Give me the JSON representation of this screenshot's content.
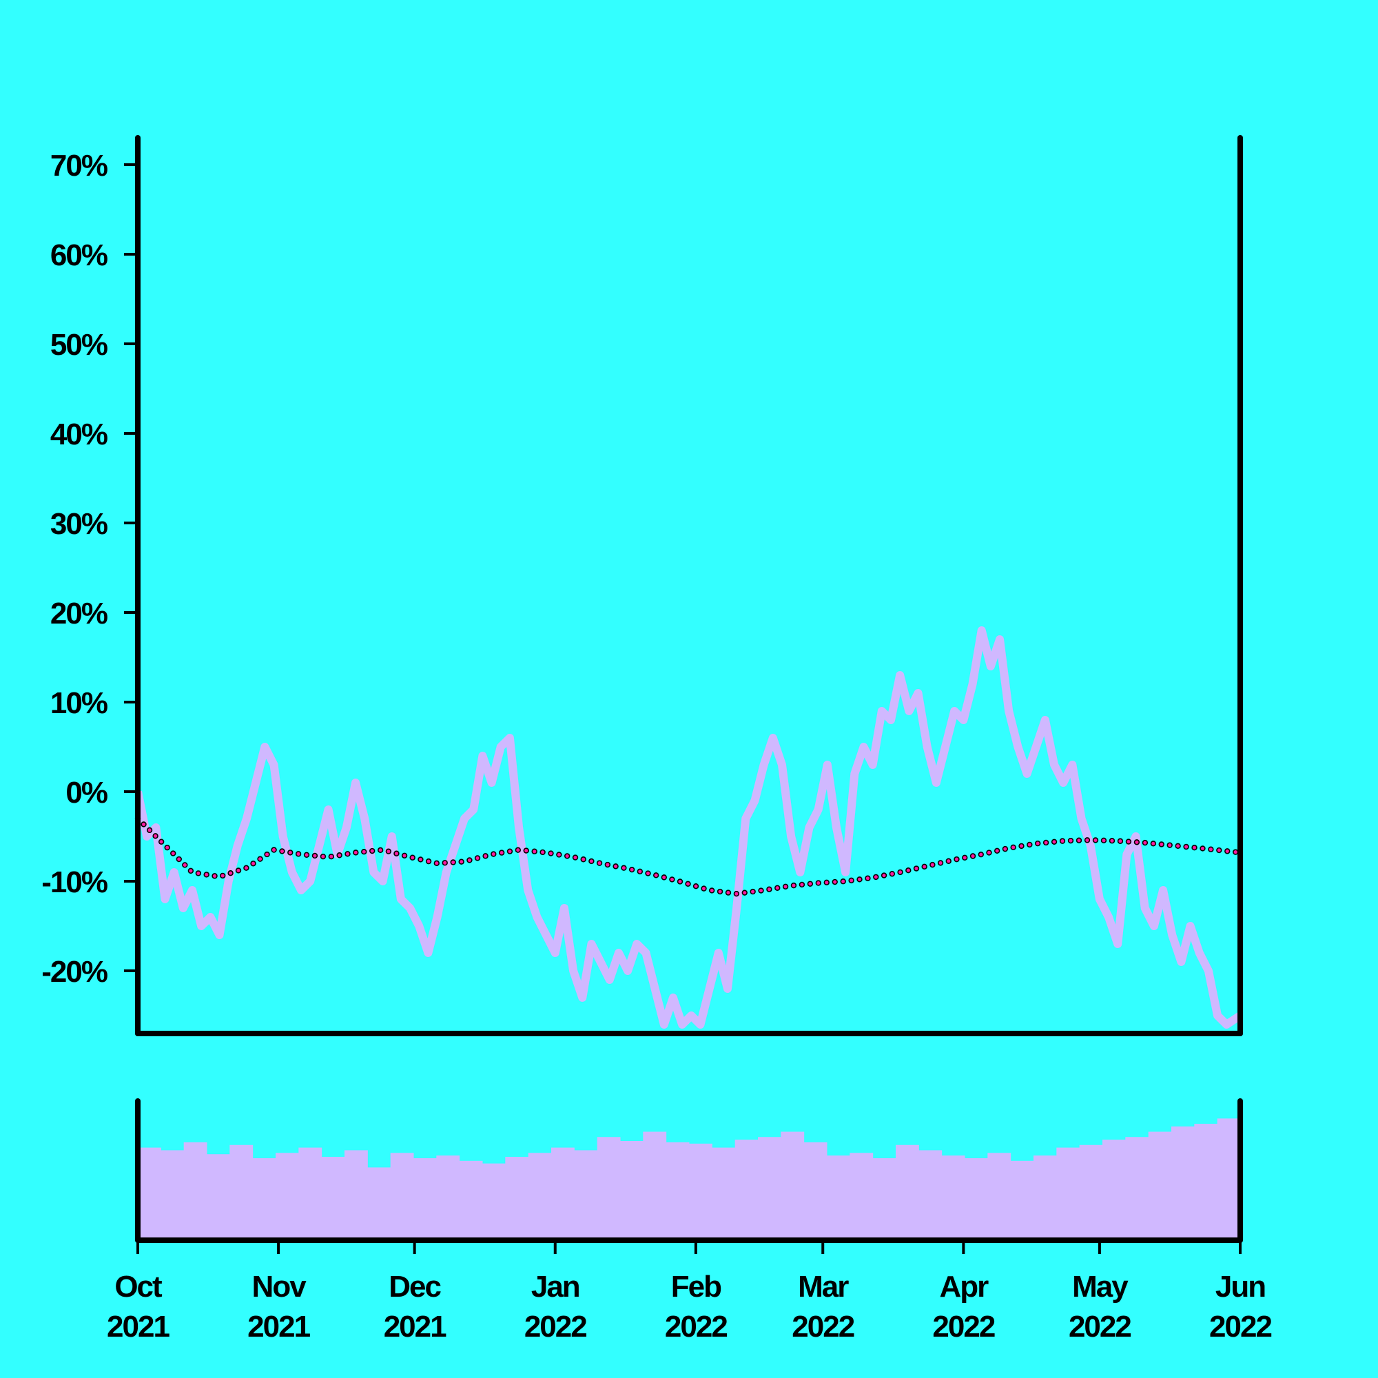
{
  "chart_data": [
    {
      "type": "line",
      "x_axis": "date",
      "x_range": [
        "2021-10-01",
        "2022-06-01"
      ],
      "ylim": [
        -27,
        73
      ],
      "grid": false,
      "y_ticks": [
        {
          "value": 70,
          "label": "70%"
        },
        {
          "value": 60,
          "label": "60%"
        },
        {
          "value": 50,
          "label": "50%"
        },
        {
          "value": 40,
          "label": "40%"
        },
        {
          "value": 30,
          "label": "30%"
        },
        {
          "value": 20,
          "label": "20%"
        },
        {
          "value": 10,
          "label": "10%"
        },
        {
          "value": 0,
          "label": "0%"
        },
        {
          "value": -10,
          "label": "-10%"
        },
        {
          "value": -20,
          "label": "-20%"
        }
      ],
      "x_ticks": [
        {
          "date": "2021-10-01",
          "month": "Oct",
          "year": "2021"
        },
        {
          "date": "2021-11-01",
          "month": "Nov",
          "year": "2021"
        },
        {
          "date": "2021-12-01",
          "month": "Dec",
          "year": "2021"
        },
        {
          "date": "2022-01-01",
          "month": "Jan",
          "year": "2022"
        },
        {
          "date": "2022-02-01",
          "month": "Feb",
          "year": "2022"
        },
        {
          "date": "2022-03-01",
          "month": "Mar",
          "year": "2022"
        },
        {
          "date": "2022-04-01",
          "month": "Apr",
          "year": "2022"
        },
        {
          "date": "2022-05-01",
          "month": "May",
          "year": "2022"
        },
        {
          "date": "2022-06-01",
          "month": "Jun",
          "year": "2022"
        }
      ],
      "series": [
        {
          "style": "area",
          "color": "#d0b8ff",
          "points": [
            [
              "2021-10-01",
              0
            ],
            [
              "2021-10-03",
              -5
            ],
            [
              "2021-10-05",
              -4
            ],
            [
              "2021-10-07",
              -12
            ],
            [
              "2021-10-09",
              -9
            ],
            [
              "2021-10-11",
              -13
            ],
            [
              "2021-10-13",
              -11
            ],
            [
              "2021-10-15",
              -15
            ],
            [
              "2021-10-17",
              -14
            ],
            [
              "2021-10-19",
              -16
            ],
            [
              "2021-10-21",
              -10
            ],
            [
              "2021-10-23",
              -6
            ],
            [
              "2021-10-25",
              -3
            ],
            [
              "2021-10-27",
              1
            ],
            [
              "2021-10-29",
              5
            ],
            [
              "2021-10-31",
              3
            ],
            [
              "2021-11-02",
              -5
            ],
            [
              "2021-11-04",
              -9
            ],
            [
              "2021-11-06",
              -11
            ],
            [
              "2021-11-08",
              -10
            ],
            [
              "2021-11-10",
              -6
            ],
            [
              "2021-11-12",
              -2
            ],
            [
              "2021-11-14",
              -7
            ],
            [
              "2021-11-16",
              -4
            ],
            [
              "2021-11-18",
              1
            ],
            [
              "2021-11-20",
              -3
            ],
            [
              "2021-11-22",
              -9
            ],
            [
              "2021-11-24",
              -10
            ],
            [
              "2021-11-26",
              -5
            ],
            [
              "2021-11-28",
              -12
            ],
            [
              "2021-11-30",
              -13
            ],
            [
              "2021-12-02",
              -15
            ],
            [
              "2021-12-04",
              -18
            ],
            [
              "2021-12-06",
              -14
            ],
            [
              "2021-12-08",
              -9
            ],
            [
              "2021-12-10",
              -6
            ],
            [
              "2021-12-12",
              -3
            ],
            [
              "2021-12-14",
              -2
            ],
            [
              "2021-12-16",
              4
            ],
            [
              "2021-12-18",
              1
            ],
            [
              "2021-12-20",
              5
            ],
            [
              "2021-12-22",
              6
            ],
            [
              "2021-12-24",
              -4
            ],
            [
              "2021-12-26",
              -11
            ],
            [
              "2021-12-28",
              -14
            ],
            [
              "2021-12-30",
              -16
            ],
            [
              "2022-01-01",
              -18
            ],
            [
              "2022-01-03",
              -13
            ],
            [
              "2022-01-05",
              -20
            ],
            [
              "2022-01-07",
              -23
            ],
            [
              "2022-01-09",
              -17
            ],
            [
              "2022-01-11",
              -19
            ],
            [
              "2022-01-13",
              -21
            ],
            [
              "2022-01-15",
              -18
            ],
            [
              "2022-01-17",
              -20
            ],
            [
              "2022-01-19",
              -17
            ],
            [
              "2022-01-21",
              -18
            ],
            [
              "2022-01-23",
              -22
            ],
            [
              "2022-01-25",
              -26
            ],
            [
              "2022-01-27",
              -23
            ],
            [
              "2022-01-29",
              -26
            ],
            [
              "2022-01-31",
              -25
            ],
            [
              "2022-02-02",
              -26
            ],
            [
              "2022-02-04",
              -22
            ],
            [
              "2022-02-06",
              -18
            ],
            [
              "2022-02-08",
              -22
            ],
            [
              "2022-02-10",
              -13
            ],
            [
              "2022-02-12",
              -3
            ],
            [
              "2022-02-14",
              -1
            ],
            [
              "2022-02-16",
              3
            ],
            [
              "2022-02-18",
              6
            ],
            [
              "2022-02-20",
              3
            ],
            [
              "2022-02-22",
              -5
            ],
            [
              "2022-02-24",
              -9
            ],
            [
              "2022-02-26",
              -4
            ],
            [
              "2022-02-28",
              -2
            ],
            [
              "2022-03-02",
              3
            ],
            [
              "2022-03-04",
              -4
            ],
            [
              "2022-03-06",
              -9
            ],
            [
              "2022-03-08",
              2
            ],
            [
              "2022-03-10",
              5
            ],
            [
              "2022-03-12",
              3
            ],
            [
              "2022-03-14",
              9
            ],
            [
              "2022-03-16",
              8
            ],
            [
              "2022-03-18",
              13
            ],
            [
              "2022-03-20",
              9
            ],
            [
              "2022-03-22",
              11
            ],
            [
              "2022-03-24",
              5
            ],
            [
              "2022-03-26",
              1
            ],
            [
              "2022-03-28",
              5
            ],
            [
              "2022-03-30",
              9
            ],
            [
              "2022-04-01",
              8
            ],
            [
              "2022-04-03",
              12
            ],
            [
              "2022-04-05",
              18
            ],
            [
              "2022-04-07",
              14
            ],
            [
              "2022-04-09",
              17
            ],
            [
              "2022-04-11",
              9
            ],
            [
              "2022-04-13",
              5
            ],
            [
              "2022-04-15",
              2
            ],
            [
              "2022-04-17",
              5
            ],
            [
              "2022-04-19",
              8
            ],
            [
              "2022-04-21",
              3
            ],
            [
              "2022-04-23",
              1
            ],
            [
              "2022-04-25",
              3
            ],
            [
              "2022-04-27",
              -3
            ],
            [
              "2022-04-29",
              -6
            ],
            [
              "2022-05-01",
              -12
            ],
            [
              "2022-05-03",
              -14
            ],
            [
              "2022-05-05",
              -17
            ],
            [
              "2022-05-07",
              -7
            ],
            [
              "2022-05-09",
              -5
            ],
            [
              "2022-05-11",
              -13
            ],
            [
              "2022-05-13",
              -15
            ],
            [
              "2022-05-15",
              -11
            ],
            [
              "2022-05-17",
              -16
            ],
            [
              "2022-05-19",
              -19
            ],
            [
              "2022-05-21",
              -15
            ],
            [
              "2022-05-23",
              -18
            ],
            [
              "2022-05-25",
              -20
            ],
            [
              "2022-05-27",
              -25
            ],
            [
              "2022-05-29",
              -26
            ],
            [
              "2022-06-01",
              -25
            ]
          ]
        },
        {
          "style": "dotted-line",
          "color": "#ff1aa0",
          "marker_edge": "#000000",
          "points": [
            [
              "2021-10-01",
              -3
            ],
            [
              "2021-10-07",
              -6
            ],
            [
              "2021-10-13",
              -9
            ],
            [
              "2021-10-19",
              -9.5
            ],
            [
              "2021-10-25",
              -8.5
            ],
            [
              "2021-10-31",
              -6.5
            ],
            [
              "2021-11-06",
              -7
            ],
            [
              "2021-11-12",
              -7.3
            ],
            [
              "2021-11-18",
              -6.8
            ],
            [
              "2021-11-24",
              -6.5
            ],
            [
              "2021-11-30",
              -7.3
            ],
            [
              "2021-12-06",
              -8
            ],
            [
              "2021-12-12",
              -7.8
            ],
            [
              "2021-12-18",
              -7
            ],
            [
              "2021-12-24",
              -6.5
            ],
            [
              "2021-12-30",
              -6.8
            ],
            [
              "2022-01-05",
              -7.3
            ],
            [
              "2022-01-11",
              -8
            ],
            [
              "2022-01-17",
              -8.6
            ],
            [
              "2022-01-23",
              -9.3
            ],
            [
              "2022-01-29",
              -10.1
            ],
            [
              "2022-02-04",
              -11
            ],
            [
              "2022-02-10",
              -11.4
            ],
            [
              "2022-02-16",
              -11
            ],
            [
              "2022-02-22",
              -10.5
            ],
            [
              "2022-02-28",
              -10.2
            ],
            [
              "2022-03-06",
              -10
            ],
            [
              "2022-03-12",
              -9.6
            ],
            [
              "2022-03-18",
              -9
            ],
            [
              "2022-03-24",
              -8.3
            ],
            [
              "2022-03-30",
              -7.6
            ],
            [
              "2022-04-05",
              -7
            ],
            [
              "2022-04-11",
              -6.3
            ],
            [
              "2022-04-17",
              -5.8
            ],
            [
              "2022-04-23",
              -5.5
            ],
            [
              "2022-04-29",
              -5.4
            ],
            [
              "2022-05-05",
              -5.5
            ],
            [
              "2022-05-11",
              -5.7
            ],
            [
              "2022-05-17",
              -6
            ],
            [
              "2022-05-23",
              -6.3
            ],
            [
              "2022-06-01",
              -6.8
            ]
          ]
        }
      ]
    },
    {
      "type": "bar",
      "x_axis": "date",
      "x_range": [
        "2021-10-01",
        "2022-06-01"
      ],
      "color": "#d0b8ff",
      "ylim": [
        0,
        1
      ],
      "values_weekly": [
        0.7,
        0.68,
        0.74,
        0.65,
        0.72,
        0.62,
        0.66,
        0.7,
        0.63,
        0.68,
        0.55,
        0.66,
        0.62,
        0.64,
        0.6,
        0.58,
        0.63,
        0.66,
        0.7,
        0.68,
        0.78,
        0.75,
        0.82,
        0.74,
        0.73,
        0.7,
        0.76,
        0.78,
        0.82,
        0.74,
        0.64,
        0.66,
        0.62,
        0.72,
        0.68,
        0.64,
        0.62,
        0.66,
        0.6,
        0.64,
        0.7,
        0.72,
        0.76,
        0.78,
        0.82,
        0.86,
        0.88,
        0.92
      ]
    }
  ]
}
